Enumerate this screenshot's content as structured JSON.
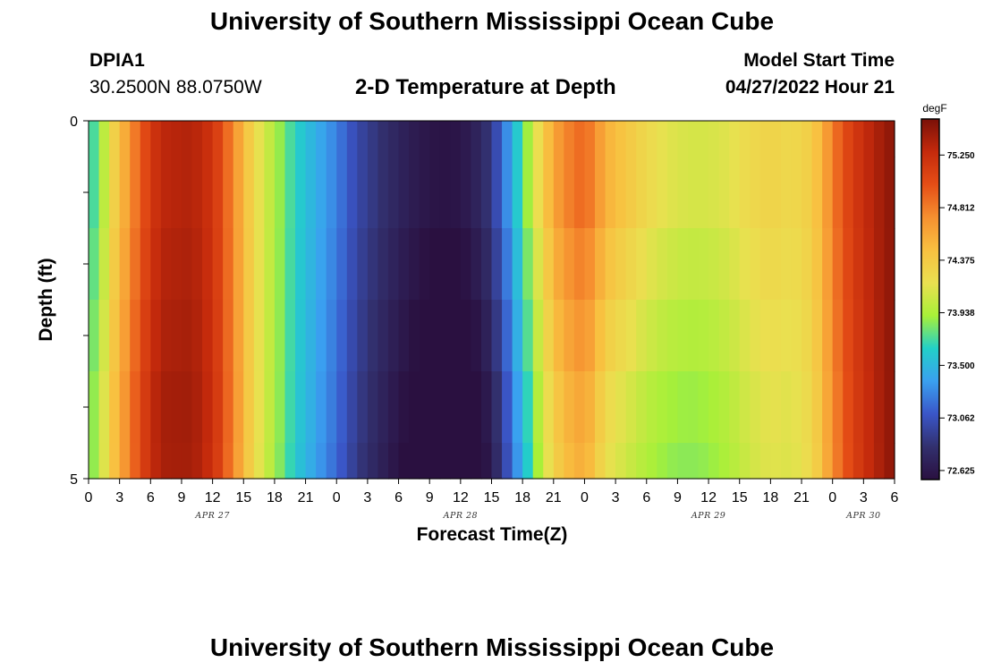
{
  "header": {
    "title": "University of Southern Mississippi Ocean Cube",
    "station_id": "DPIA1",
    "coords": "30.2500N  88.0750W",
    "plot_title": "2-D Temperature at Depth",
    "start_label": "Model Start Time",
    "start_value": "04/27/2022 Hour 21"
  },
  "footer": {
    "title": "University of Southern Mississippi Ocean Cube"
  },
  "colors": {
    "ramp": [
      "#2a1040",
      "#32306e",
      "#3a56c8",
      "#3aa0f0",
      "#22d0c8",
      "#a8f038",
      "#eae050",
      "#f8c040",
      "#f69030",
      "#e64e16",
      "#c42a0c",
      "#7a1008"
    ]
  },
  "chart_data": {
    "type": "heatmap",
    "title": "2-D Temperature at Depth",
    "xlabel": "Forecast Time(Z)",
    "ylabel": "Depth (ft)",
    "units": "degF",
    "x_hours_start": 0,
    "x_hours_end": 78,
    "x_tick_labels": [
      "0",
      "3",
      "6",
      "9",
      "12",
      "15",
      "18",
      "21",
      "0",
      "3",
      "6",
      "9",
      "12",
      "15",
      "18",
      "21",
      "0",
      "3",
      "6",
      "9",
      "12",
      "15",
      "18",
      "21",
      "0",
      "3",
      "6"
    ],
    "date_labels": [
      {
        "label": "APR 27",
        "hour": 12
      },
      {
        "label": "APR 28",
        "hour": 36
      },
      {
        "label": "APR 29",
        "hour": 60
      },
      {
        "label": "APR 30",
        "hour": 75
      }
    ],
    "y_tick_labels": [
      {
        "label": "0",
        "depth": 0
      },
      {
        "label": "5",
        "depth": 5
      }
    ],
    "ylim": [
      0,
      5
    ],
    "depth_levels": [
      0,
      0.5,
      1.5,
      2.5,
      3.5,
      4.5
    ],
    "colorbar_ticks": [
      "75.250",
      "74.812",
      "74.375",
      "73.938",
      "73.500",
      "73.062",
      "72.625"
    ],
    "value_range": [
      72.55,
      75.55
    ],
    "surface_profile": [
      {
        "h": 0,
        "v": 73.65
      },
      {
        "h": 1,
        "v": 73.8
      },
      {
        "h": 2,
        "v": 74.2
      },
      {
        "h": 3,
        "v": 74.45
      },
      {
        "h": 4,
        "v": 74.7
      },
      {
        "h": 5,
        "v": 74.95
      },
      {
        "h": 6,
        "v": 75.15
      },
      {
        "h": 7,
        "v": 75.3
      },
      {
        "h": 10,
        "v": 75.35
      },
      {
        "h": 12,
        "v": 75.2
      },
      {
        "h": 13,
        "v": 75.0
      },
      {
        "h": 14,
        "v": 74.75
      },
      {
        "h": 15,
        "v": 74.5
      },
      {
        "h": 16,
        "v": 74.25
      },
      {
        "h": 17,
        "v": 74.1
      },
      {
        "h": 18,
        "v": 73.95
      },
      {
        "h": 20,
        "v": 73.65
      },
      {
        "h": 22,
        "v": 73.45
      },
      {
        "h": 24,
        "v": 73.25
      },
      {
        "h": 26,
        "v": 73.0
      },
      {
        "h": 28,
        "v": 72.85
      },
      {
        "h": 30,
        "v": 72.72
      },
      {
        "h": 32,
        "v": 72.63
      },
      {
        "h": 34,
        "v": 72.58
      },
      {
        "h": 36,
        "v": 72.6
      },
      {
        "h": 38,
        "v": 72.75
      },
      {
        "h": 39,
        "v": 72.9
      },
      {
        "h": 40,
        "v": 73.15
      },
      {
        "h": 41,
        "v": 73.45
      },
      {
        "h": 42,
        "v": 73.75
      },
      {
        "h": 43,
        "v": 74.05
      },
      {
        "h": 44,
        "v": 74.35
      },
      {
        "h": 45,
        "v": 74.6
      },
      {
        "h": 46,
        "v": 74.75
      },
      {
        "h": 47,
        "v": 74.85
      },
      {
        "h": 48,
        "v": 74.9
      },
      {
        "h": 49,
        "v": 74.75
      },
      {
        "h": 50,
        "v": 74.55
      },
      {
        "h": 52,
        "v": 74.4
      },
      {
        "h": 54,
        "v": 74.25
      },
      {
        "h": 56,
        "v": 74.15
      },
      {
        "h": 58,
        "v": 74.1
      },
      {
        "h": 60,
        "v": 74.1
      },
      {
        "h": 62,
        "v": 74.15
      },
      {
        "h": 64,
        "v": 74.25
      },
      {
        "h": 66,
        "v": 74.3
      },
      {
        "h": 68,
        "v": 74.25
      },
      {
        "h": 70,
        "v": 74.35
      },
      {
        "h": 71,
        "v": 74.55
      },
      {
        "h": 72,
        "v": 74.8
      },
      {
        "h": 73,
        "v": 75.0
      },
      {
        "h": 74,
        "v": 75.15
      },
      {
        "h": 75,
        "v": 75.25
      },
      {
        "h": 76,
        "v": 75.35
      },
      {
        "h": 77,
        "v": 75.42
      },
      {
        "h": 78,
        "v": 75.5
      }
    ],
    "depth_offsets": [
      [
        0.0,
        0.0,
        0.05,
        0.1,
        0.15,
        0.15
      ],
      [
        0.0,
        0.0,
        -0.1,
        -0.2,
        -0.3,
        -0.35
      ],
      [
        0.0,
        0.0,
        0.0,
        0.0,
        0.0,
        0.0
      ]
    ],
    "depth_offset_hours": [
      0,
      50,
      78
    ]
  }
}
